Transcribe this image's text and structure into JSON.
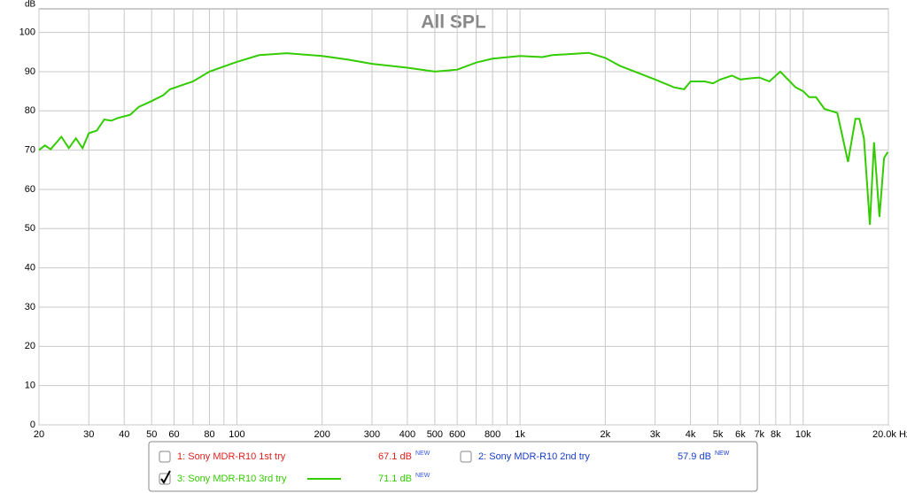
{
  "chart_data": {
    "type": "line",
    "title": "All SPL",
    "y_label": "dB",
    "log_x": true,
    "grid": true,
    "xlim": [
      20,
      20000
    ],
    "ylim": [
      0,
      106
    ],
    "xticks": [
      20,
      30,
      40,
      50,
      60,
      80,
      100,
      200,
      300,
      400,
      500,
      600,
      800,
      {
        "value": 1000,
        "label": "1k"
      },
      {
        "value": 2000,
        "label": "2k"
      },
      {
        "value": 3000,
        "label": "3k"
      },
      {
        "value": 4000,
        "label": "4k"
      },
      {
        "value": 5000,
        "label": "5k"
      },
      {
        "value": 6000,
        "label": "6k"
      },
      {
        "value": 7000,
        "label": "7k"
      },
      {
        "value": 8000,
        "label": "8k"
      },
      {
        "value": 10000,
        "label": "10k"
      },
      {
        "value": 20000,
        "label": "20.0k Hz"
      }
    ],
    "xminor": [
      70,
      90,
      700,
      900,
      9000
    ],
    "yticks": [
      0,
      10,
      20,
      30,
      40,
      50,
      60,
      70,
      80,
      90,
      100
    ],
    "x": [
      20,
      21,
      22,
      24,
      25.5,
      27,
      28.5,
      30,
      32,
      34,
      36,
      38,
      42,
      45,
      50,
      55,
      58,
      70,
      80,
      100,
      120,
      150,
      200,
      250,
      300,
      400,
      500,
      600,
      700,
      800,
      1000,
      1200,
      1300,
      1750,
      2000,
      2250,
      3000,
      3500,
      3800,
      4000,
      4500,
      4800,
      5100,
      5600,
      6000,
      6500,
      7000,
      7600,
      8300,
      9400,
      10000,
      10500,
      11100,
      11900,
      13200,
      14400,
      15300,
      15800,
      16400,
      17200,
      17800,
      18600,
      19300,
      19900
    ],
    "series": [
      {
        "name": "1: Sony MDR-R10 1st try",
        "color": "#e02020",
        "checked": false,
        "level": "67.1 dB",
        "tag": "NEW"
      },
      {
        "name": "2: Sony MDR-R10 2nd try",
        "color": "#1a3cc8",
        "checked": false,
        "level": "57.9 dB",
        "tag": "NEW"
      },
      {
        "name": "3: Sony MDR-R10 3rd try",
        "color": "#33cc00",
        "checked": true,
        "level": "71.1 dB",
        "tag": "NEW",
        "values": [
          70,
          71.2,
          70.2,
          73.4,
          70.5,
          73,
          70.5,
          74.3,
          75,
          77.8,
          77.5,
          78.2,
          79,
          81,
          82.5,
          84,
          85.5,
          87.5,
          90,
          92.5,
          94.2,
          94.7,
          94,
          93,
          92,
          91,
          90,
          90.5,
          92.3,
          93.3,
          94,
          93.7,
          94.2,
          94.8,
          93.5,
          91.5,
          88,
          86,
          85.5,
          87.5,
          87.5,
          87,
          88,
          89,
          88,
          88.3,
          88.5,
          87.5,
          90,
          86,
          85,
          83.5,
          83.5,
          80.5,
          79.5,
          67,
          78,
          78,
          73,
          51,
          72,
          53,
          68,
          69.5
        ]
      }
    ]
  }
}
